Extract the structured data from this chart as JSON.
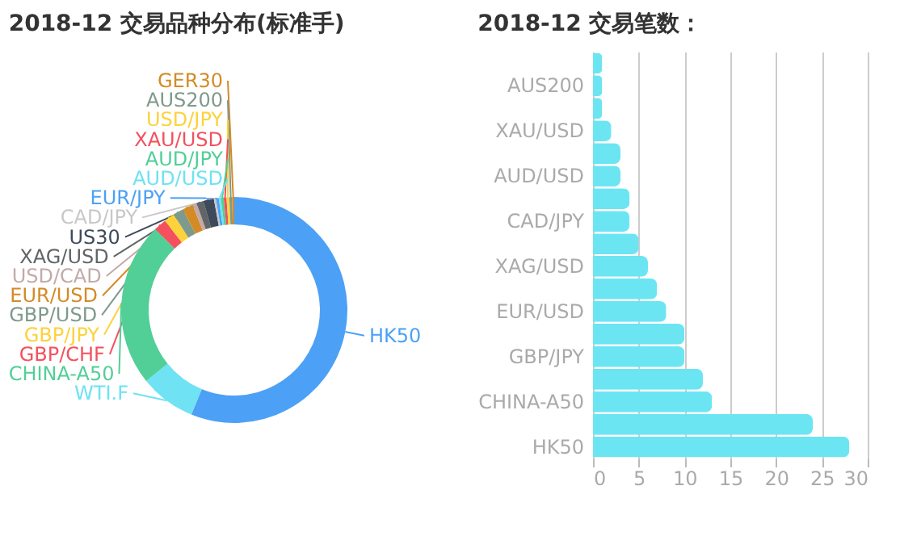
{
  "chart_data": [
    {
      "type": "donut",
      "title": "2018-12 交易品种分布(标准手)",
      "legend": false,
      "categories": [
        "HK50",
        "WTI.F",
        "CHINA-A50",
        "GBP/CHF",
        "GBP/JPY",
        "GBP/USD",
        "EUR/USD",
        "USD/CAD",
        "XAG/USD",
        "US30",
        "CAD/JPY",
        "EUR/JPY",
        "AUD/USD",
        "AUD/JPY",
        "XAU/USD",
        "USD/JPY",
        "AUS200",
        "GER30"
      ],
      "values": [
        56.2,
        8,
        23.5,
        1.8,
        1.5,
        1.5,
        1.5,
        0.6,
        1.0,
        1.5,
        0.3,
        0.4,
        0.3,
        0.4,
        0.4,
        0.4,
        0.4,
        0.3
      ],
      "colors": [
        "#4ca1f6",
        "#6fe2f3",
        "#52cf97",
        "#f4505d",
        "#fdd23b",
        "#7e9a8c",
        "#d38b26",
        "#c3aaa8",
        "#616566",
        "#3e4a5b",
        "#c8c8c8",
        "#4ca1f6",
        "#6fe2f3",
        "#52cf97",
        "#f4505d",
        "#fdd23b",
        "#7e9a8c",
        "#d38b26"
      ]
    },
    {
      "type": "bar",
      "orientation": "horizontal",
      "title": "2018-12 交易笔数：",
      "categories": [
        null,
        "AUS200",
        null,
        "XAU/USD",
        null,
        "AUD/USD",
        null,
        "CAD/JPY",
        null,
        "XAG/USD",
        null,
        "EUR/USD",
        null,
        "GBP/JPY",
        null,
        "CHINA-A50",
        null,
        "HK50"
      ],
      "values": [
        1,
        1,
        1,
        2,
        3,
        3,
        4,
        4,
        5,
        6,
        7,
        8,
        10,
        10,
        12,
        13,
        24,
        28
      ],
      "color": "#6ce5f3",
      "xlim": [
        0,
        30
      ],
      "xticks": [
        0,
        5,
        10,
        15,
        20,
        25,
        30
      ],
      "grid": "x"
    }
  ]
}
